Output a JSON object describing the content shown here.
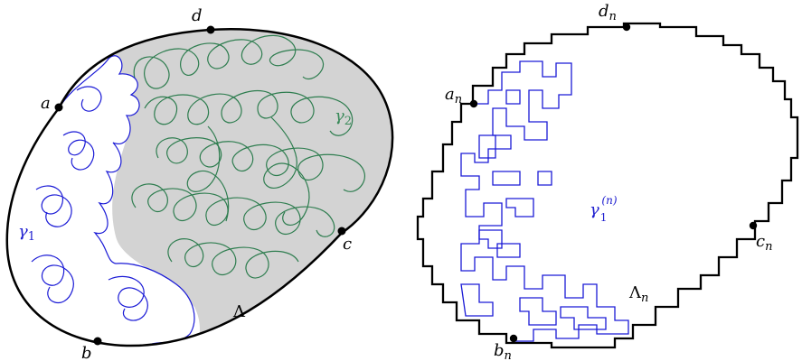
{
  "colors": {
    "boundary": "#000000",
    "fill_region": "#d3d3d3",
    "curve_blue": "#1a1ad6",
    "curve_green": "#2e7d4f",
    "label_blue": "#2020d0",
    "label_green": "#3a8a5a"
  },
  "left": {
    "points": {
      "a": "a",
      "b": "b",
      "c": "c",
      "d": "d"
    },
    "domain_label": "Λ",
    "curve1_label": "γ",
    "curve1_sub": "1",
    "curve2_label": "γ",
    "curve2_sub": "2"
  },
  "right": {
    "points": {
      "a": "a",
      "a_sub": "n",
      "b": "b",
      "b_sub": "n",
      "c": "c",
      "c_sub": "n",
      "d": "d",
      "d_sub": "n"
    },
    "domain_label": "Λ",
    "domain_sub": "n",
    "curve_label": "γ",
    "curve_sub": "1",
    "curve_sup": "(n)"
  }
}
